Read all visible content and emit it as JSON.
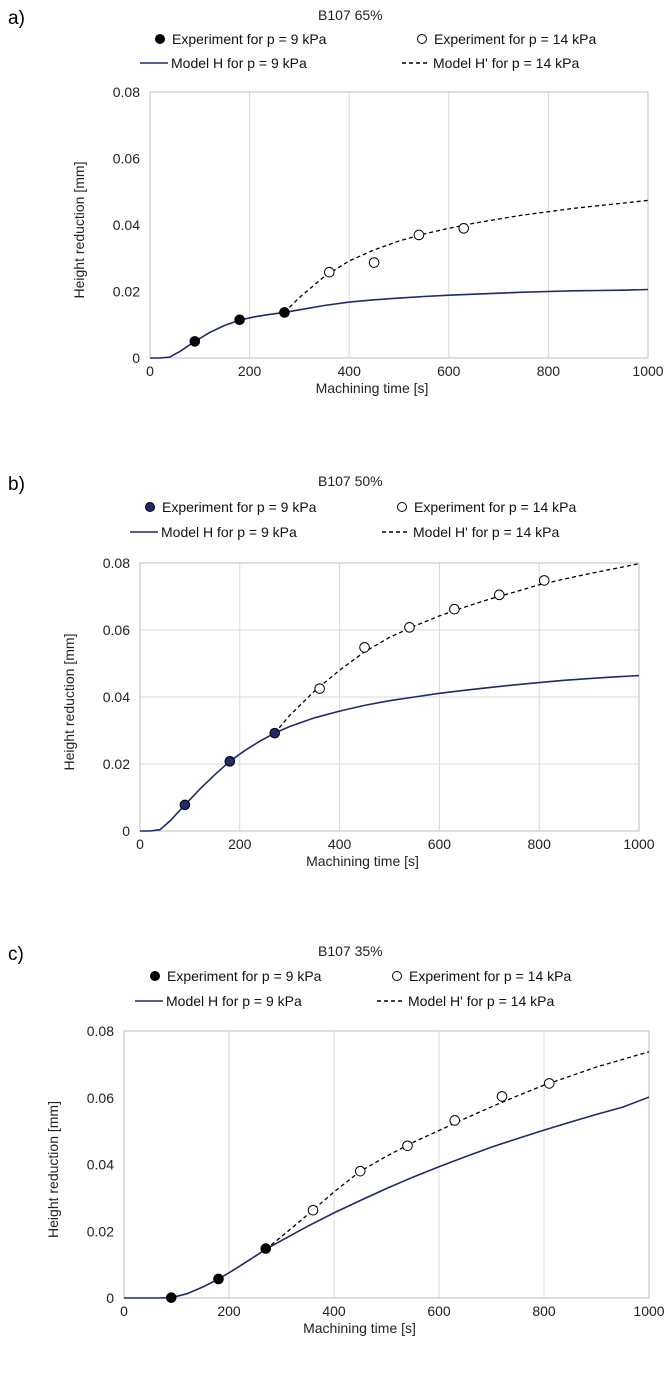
{
  "chart_data": [
    {
      "type": "line",
      "panel_label": "a)",
      "title": "B107 65%",
      "xlabel": "Machining time [s]",
      "ylabel": "Height reduction [mm]",
      "xlim": [
        0,
        1000
      ],
      "ylim": [
        0,
        0.08
      ],
      "x_ticks": [
        "0",
        "200",
        "400",
        "600",
        "800",
        "1000"
      ],
      "y_ticks": [
        "0",
        "0.02",
        "0.04",
        "0.06",
        "0.08"
      ],
      "grid": "vertical",
      "legend": [
        {
          "label": "Experiment for p = 9 kPa",
          "marker": "filled-circle"
        },
        {
          "label": "Experiment for p = 14 kPa",
          "marker": "open-circle"
        },
        {
          "label": "Model H for p = 9 kPa",
          "style": "solid-line"
        },
        {
          "label": "Model H' for p = 14 kPa",
          "style": "dashed-line"
        }
      ],
      "series": [
        {
          "name": "Experiment for p = 9 kPa",
          "kind": "scatter",
          "fill": "#000000",
          "x": [
            90,
            180,
            270
          ],
          "y": [
            0.005,
            0.0115,
            0.0137
          ]
        },
        {
          "name": "Experiment for p = 14 kPa",
          "kind": "scatter",
          "fill": "#ffffff",
          "x": [
            360,
            450,
            540,
            630
          ],
          "y": [
            0.0258,
            0.0287,
            0.037,
            0.039
          ]
        },
        {
          "name": "Model H for p = 9 kPa",
          "kind": "line",
          "color": "#1f2a6b",
          "x": [
            0,
            20,
            40,
            60,
            90,
            120,
            150,
            180,
            210,
            240,
            270,
            300,
            350,
            400,
            450,
            500,
            550,
            600,
            650,
            700,
            750,
            800,
            850,
            900,
            950,
            1000
          ],
          "y": [
            0,
            0,
            0.0003,
            0.002,
            0.005,
            0.0077,
            0.0098,
            0.0114,
            0.0124,
            0.0131,
            0.0137,
            0.0145,
            0.0158,
            0.0168,
            0.0175,
            0.018,
            0.0185,
            0.0189,
            0.0192,
            0.0195,
            0.0198,
            0.02,
            0.0202,
            0.0203,
            0.0204,
            0.0206
          ]
        },
        {
          "name": "Model H' for p = 14 kPa",
          "kind": "line",
          "dash": true,
          "color": "#000000",
          "x": [
            270,
            300,
            350,
            400,
            450,
            500,
            550,
            600,
            650,
            700,
            750,
            800,
            850,
            900,
            950,
            1000
          ],
          "y": [
            0.0137,
            0.0182,
            0.0245,
            0.0292,
            0.0325,
            0.0352,
            0.0373,
            0.039,
            0.0405,
            0.0418,
            0.043,
            0.044,
            0.045,
            0.0458,
            0.0466,
            0.0474
          ]
        }
      ]
    },
    {
      "type": "line",
      "panel_label": "b)",
      "title": "B107 50%",
      "xlabel": "Machining time [s]",
      "ylabel": "Height reduction [mm]",
      "xlim": [
        0,
        1000
      ],
      "ylim": [
        0,
        0.08
      ],
      "x_ticks": [
        "0",
        "200",
        "400",
        "600",
        "800",
        "1000"
      ],
      "y_ticks": [
        "0",
        "0.02",
        "0.04",
        "0.06",
        "0.08"
      ],
      "grid": "both",
      "legend": [
        {
          "label": "Experiment for p = 9 kPa",
          "marker": "filled-circle"
        },
        {
          "label": "Experiment for p = 14 kPa",
          "marker": "open-circle"
        },
        {
          "label": "Model H for p = 9 kPa",
          "style": "solid-line"
        },
        {
          "label": "Model H' for p = 14 kPa",
          "style": "dashed-line"
        }
      ],
      "series": [
        {
          "name": "Experiment for p = 9 kPa",
          "kind": "scatter",
          "fill": "#1f2a6b",
          "x": [
            90,
            180,
            270
          ],
          "y": [
            0.0078,
            0.0208,
            0.0292
          ]
        },
        {
          "name": "Experiment for p = 14 kPa",
          "kind": "scatter",
          "fill": "#ffffff",
          "x": [
            360,
            450,
            540,
            630,
            720,
            810
          ],
          "y": [
            0.0425,
            0.0548,
            0.0608,
            0.0662,
            0.0705,
            0.0748
          ]
        },
        {
          "name": "Model H for p = 9 kPa",
          "kind": "line",
          "color": "#1f2a6b",
          "x": [
            0,
            20,
            40,
            60,
            90,
            120,
            150,
            180,
            210,
            240,
            270,
            300,
            350,
            400,
            450,
            500,
            550,
            600,
            650,
            700,
            750,
            800,
            850,
            900,
            950,
            1000
          ],
          "y": [
            0,
            0,
            0.0004,
            0.003,
            0.0078,
            0.0125,
            0.0168,
            0.0208,
            0.024,
            0.0268,
            0.0292,
            0.0312,
            0.0338,
            0.0358,
            0.0375,
            0.0389,
            0.04,
            0.0411,
            0.042,
            0.0428,
            0.0436,
            0.0443,
            0.045,
            0.0455,
            0.046,
            0.0464
          ]
        },
        {
          "name": "Model H' for p = 14 kPa",
          "kind": "line",
          "dash": true,
          "color": "#000000",
          "x": [
            270,
            300,
            350,
            400,
            450,
            500,
            550,
            600,
            650,
            700,
            750,
            800,
            850,
            900,
            950,
            1000
          ],
          "y": [
            0.0292,
            0.0345,
            0.0418,
            0.048,
            0.0535,
            0.0578,
            0.0612,
            0.0642,
            0.0668,
            0.0692,
            0.0713,
            0.0735,
            0.0752,
            0.0768,
            0.0783,
            0.0798
          ]
        }
      ]
    },
    {
      "type": "line",
      "panel_label": "c)",
      "title": "B107 35%",
      "xlabel": "Machining time [s]",
      "ylabel": "Height reduction [mm]",
      "xlim": [
        0,
        1000
      ],
      "ylim": [
        0,
        0.08
      ],
      "x_ticks": [
        "0",
        "200",
        "400",
        "600",
        "800",
        "1000"
      ],
      "y_ticks": [
        "0",
        "0.02",
        "0.04",
        "0.06",
        "0.08"
      ],
      "grid": "vertical",
      "legend": [
        {
          "label": "Experiment for p = 9 kPa",
          "marker": "filled-circle"
        },
        {
          "label": "Experiment for p = 14 kPa",
          "marker": "open-circle"
        },
        {
          "label": "Model H for p = 9 kPa",
          "style": "solid-line"
        },
        {
          "label": "Model H' for p = 14 kPa",
          "style": "dashed-line"
        }
      ],
      "series": [
        {
          "name": "Experiment for p = 9 kPa",
          "kind": "scatter",
          "fill": "#000000",
          "x": [
            90,
            180,
            270
          ],
          "y": [
            0.0001,
            0.0057,
            0.0148
          ]
        },
        {
          "name": "Experiment for p = 14 kPa",
          "kind": "scatter",
          "fill": "#ffffff",
          "x": [
            360,
            450,
            540,
            630,
            720,
            810
          ],
          "y": [
            0.0263,
            0.038,
            0.0456,
            0.0532,
            0.0604,
            0.0643
          ]
        },
        {
          "name": "Model H for p = 9 kPa",
          "kind": "line",
          "color": "#1f2a6b",
          "x": [
            0,
            30,
            60,
            90,
            120,
            150,
            180,
            210,
            240,
            270,
            300,
            350,
            400,
            450,
            500,
            550,
            600,
            650,
            700,
            750,
            800,
            850,
            900,
            950,
            1000
          ],
          "y": [
            0,
            0,
            0,
            0.0001,
            0.0013,
            0.0033,
            0.0057,
            0.0085,
            0.0115,
            0.0146,
            0.0172,
            0.0215,
            0.0255,
            0.0292,
            0.0328,
            0.0362,
            0.0393,
            0.0423,
            0.0452,
            0.0478,
            0.0503,
            0.0527,
            0.055,
            0.0572,
            0.0602
          ]
        },
        {
          "name": "Model H' for p = 14 kPa",
          "kind": "line",
          "dash": true,
          "color": "#000000",
          "x": [
            270,
            300,
            350,
            400,
            450,
            500,
            550,
            600,
            650,
            700,
            750,
            800,
            850,
            900,
            950,
            1000
          ],
          "y": [
            0.0146,
            0.0184,
            0.025,
            0.0318,
            0.038,
            0.0425,
            0.0466,
            0.0502,
            0.0538,
            0.0573,
            0.0606,
            0.0638,
            0.0665,
            0.0692,
            0.0715,
            0.0738
          ]
        }
      ]
    }
  ]
}
